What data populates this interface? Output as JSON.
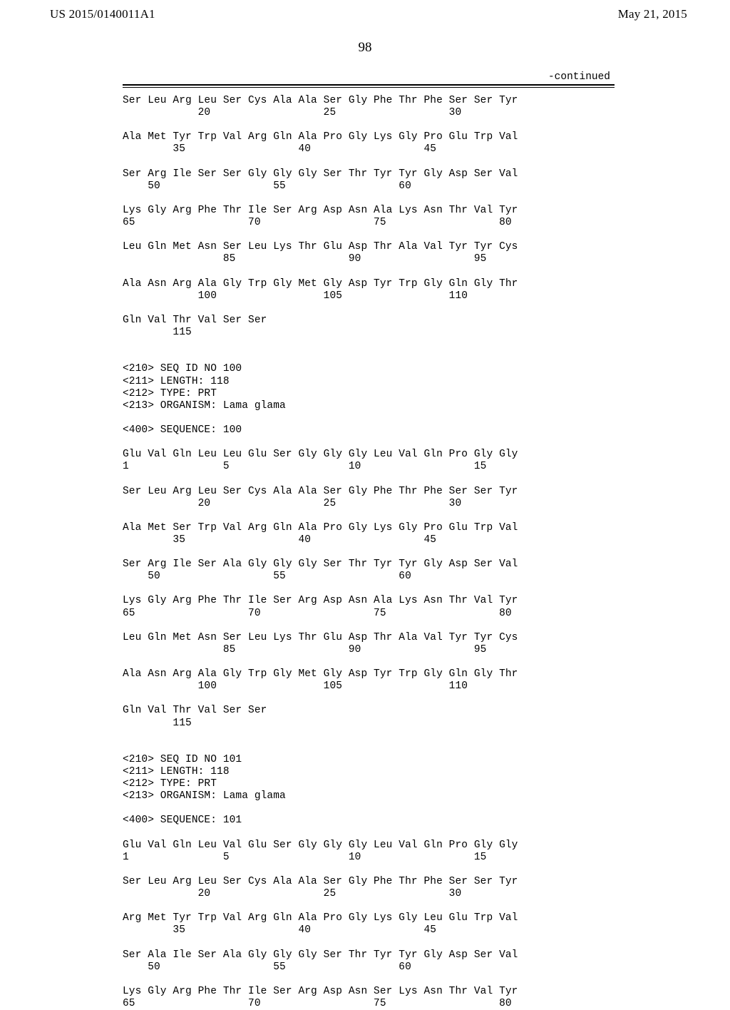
{
  "header": {
    "left": "US 2015/0140011A1",
    "right": "May 21, 2015"
  },
  "page_number": "98",
  "continued_label": "-continued",
  "sequence_text": "Ser Leu Arg Leu Ser Cys Ala Ala Ser Gly Phe Thr Phe Ser Ser Tyr\n            20                  25                  30\n\nAla Met Tyr Trp Val Arg Gln Ala Pro Gly Lys Gly Pro Glu Trp Val\n        35                  40                  45\n\nSer Arg Ile Ser Ser Gly Gly Gly Ser Thr Tyr Tyr Gly Asp Ser Val\n    50                  55                  60\n\nLys Gly Arg Phe Thr Ile Ser Arg Asp Asn Ala Lys Asn Thr Val Tyr\n65                  70                  75                  80\n\nLeu Gln Met Asn Ser Leu Lys Thr Glu Asp Thr Ala Val Tyr Tyr Cys\n                85                  90                  95\n\nAla Asn Arg Ala Gly Trp Gly Met Gly Asp Tyr Trp Gly Gln Gly Thr\n            100                 105                 110\n\nGln Val Thr Val Ser Ser\n        115\n\n\n<210> SEQ ID NO 100\n<211> LENGTH: 118\n<212> TYPE: PRT\n<213> ORGANISM: Lama glama\n\n<400> SEQUENCE: 100\n\nGlu Val Gln Leu Leu Glu Ser Gly Gly Gly Leu Val Gln Pro Gly Gly\n1               5                   10                  15\n\nSer Leu Arg Leu Ser Cys Ala Ala Ser Gly Phe Thr Phe Ser Ser Tyr\n            20                  25                  30\n\nAla Met Ser Trp Val Arg Gln Ala Pro Gly Lys Gly Pro Glu Trp Val\n        35                  40                  45\n\nSer Arg Ile Ser Ala Gly Gly Gly Ser Thr Tyr Tyr Gly Asp Ser Val\n    50                  55                  60\n\nLys Gly Arg Phe Thr Ile Ser Arg Asp Asn Ala Lys Asn Thr Val Tyr\n65                  70                  75                  80\n\nLeu Gln Met Asn Ser Leu Lys Thr Glu Asp Thr Ala Val Tyr Tyr Cys\n                85                  90                  95\n\nAla Asn Arg Ala Gly Trp Gly Met Gly Asp Tyr Trp Gly Gln Gly Thr\n            100                 105                 110\n\nGln Val Thr Val Ser Ser\n        115\n\n\n<210> SEQ ID NO 101\n<211> LENGTH: 118\n<212> TYPE: PRT\n<213> ORGANISM: Lama glama\n\n<400> SEQUENCE: 101\n\nGlu Val Gln Leu Val Glu Ser Gly Gly Gly Leu Val Gln Pro Gly Gly\n1               5                   10                  15\n\nSer Leu Arg Leu Ser Cys Ala Ala Ser Gly Phe Thr Phe Ser Ser Tyr\n            20                  25                  30\n\nArg Met Tyr Trp Val Arg Gln Ala Pro Gly Lys Gly Leu Glu Trp Val\n        35                  40                  45\n\nSer Ala Ile Ser Ala Gly Gly Gly Ser Thr Tyr Tyr Gly Asp Ser Val\n    50                  55                  60\n\nLys Gly Arg Phe Thr Ile Ser Arg Asp Asn Ser Lys Asn Thr Val Tyr\n65                  70                  75                  80"
}
